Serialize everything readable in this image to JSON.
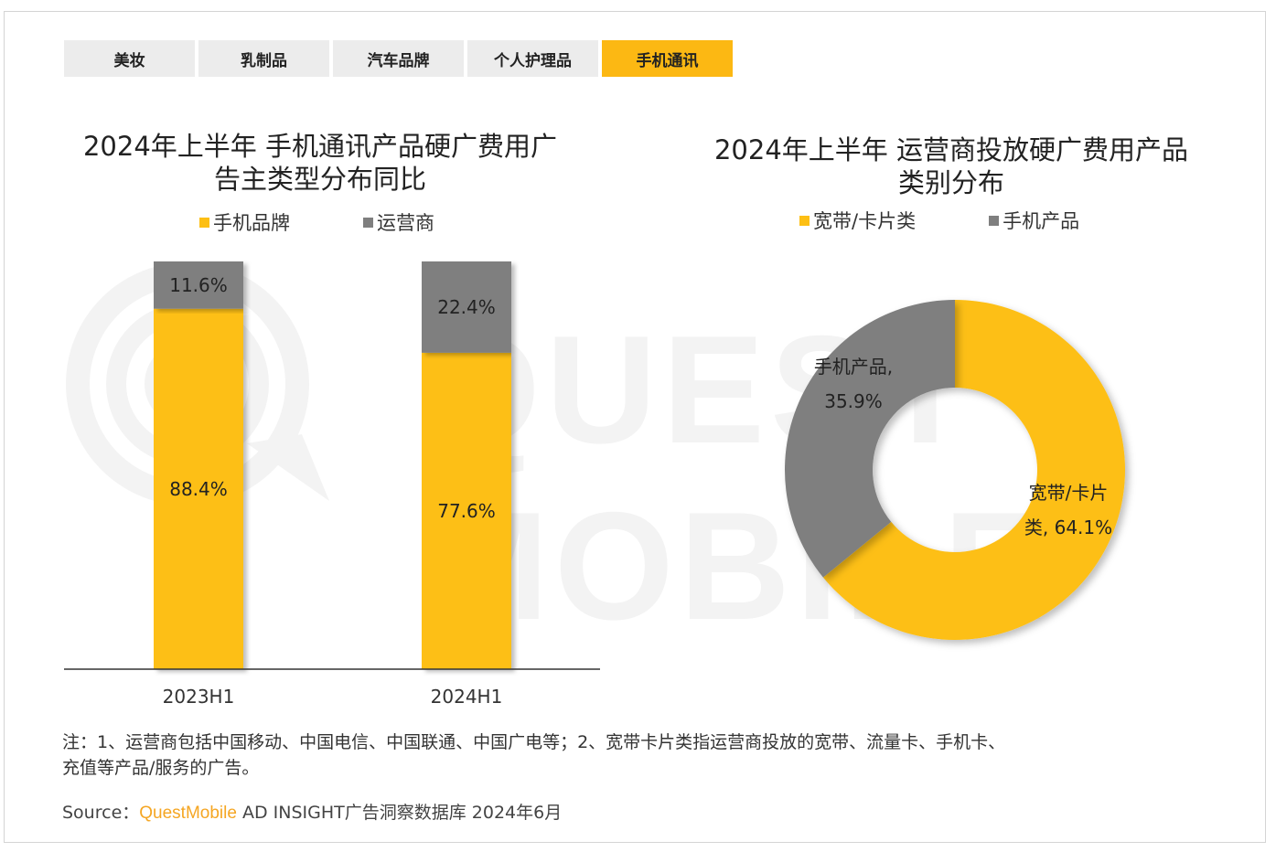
{
  "tabs": [
    {
      "label": "美妆",
      "active": false
    },
    {
      "label": "乳制品",
      "active": false
    },
    {
      "label": "汽车品牌",
      "active": false
    },
    {
      "label": "个人护理品",
      "active": false
    },
    {
      "label": "手机通讯",
      "active": true
    }
  ],
  "watermark": "QUEST MOBILE",
  "colors": {
    "accent": "#fcb813",
    "yellow": "#fdbf14",
    "gray": "#7f7f7f",
    "tab_bg": "#ececec"
  },
  "chart_data": [
    {
      "type": "bar",
      "stacked": true,
      "percent": true,
      "title": "2024年上半年 手机通讯产品硬广费用广告主类型分布同比",
      "title_lines": [
        "2024年上半年 手机通讯产品硬广费用广",
        "告主类型分布同比"
      ],
      "categories": [
        "2023H1",
        "2024H1"
      ],
      "series": [
        {
          "name": "手机品牌",
          "values": [
            88.4,
            77.6
          ],
          "color": "#fdbf14",
          "labels": [
            "88.4%",
            "77.6%"
          ]
        },
        {
          "name": "运营商",
          "values": [
            11.6,
            22.4
          ],
          "color": "#7f7f7f",
          "labels": [
            "11.6%",
            "22.4%"
          ]
        }
      ],
      "ylim": [
        0,
        100
      ],
      "grid": false,
      "legend": "top"
    },
    {
      "type": "pie",
      "donut": true,
      "title": "2024年上半年 运营商投放硬广费用产品类别分布",
      "title_lines": [
        "2024年上半年 运营商投放硬广费用产品",
        "类别分布"
      ],
      "slices": [
        {
          "name": "宽带/卡片类",
          "value": 64.1,
          "color": "#fdbf14",
          "label_lines": [
            "宽带/卡片",
            "类, 64.1%"
          ]
        },
        {
          "name": "手机产品",
          "value": 35.9,
          "color": "#7f7f7f",
          "label_lines": [
            "手机产品,",
            "35.9%"
          ]
        }
      ],
      "legend": "top"
    }
  ],
  "note_lines": [
    "注：1、运营商包括中国移动、中国电信、中国联通、中国广电等；2、宽带卡片类指运营商投放的宽带、流量卡、手机卡、",
    "充值等产品/服务的广告。"
  ],
  "source": {
    "prefix": "Source：",
    "brand": "QuestMobile",
    "text": " AD INSIGHT广告洞察数据库 2024年6月"
  }
}
